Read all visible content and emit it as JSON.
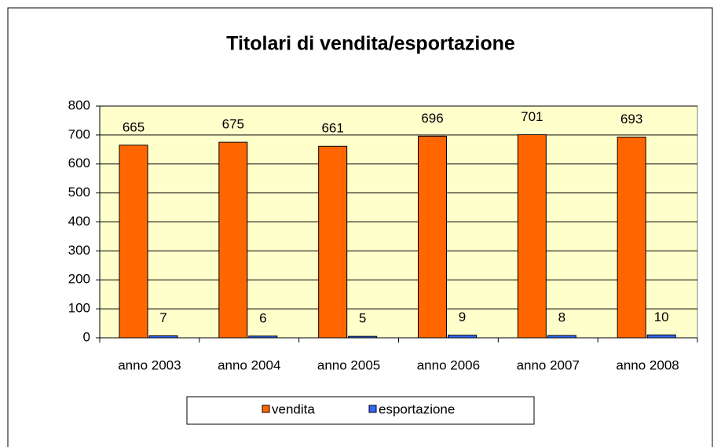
{
  "chart_data": {
    "type": "bar",
    "title": "Titolari di vendita/esportazione",
    "categories": [
      "anno 2003",
      "anno 2004",
      "anno 2005",
      "anno 2006",
      "anno 2007",
      "anno 2008"
    ],
    "series": [
      {
        "name": "vendita",
        "color": "#ff6600",
        "values": [
          665,
          675,
          661,
          696,
          701,
          693
        ]
      },
      {
        "name": "esportazione",
        "color": "#3366ff",
        "values": [
          7,
          6,
          5,
          9,
          8,
          10
        ]
      }
    ],
    "ylim": [
      0,
      800
    ],
    "yticks": [
      0,
      100,
      200,
      300,
      400,
      500,
      600,
      700,
      800
    ],
    "grid": true,
    "plot_background": "#ffffcc",
    "legend": "bottom"
  }
}
